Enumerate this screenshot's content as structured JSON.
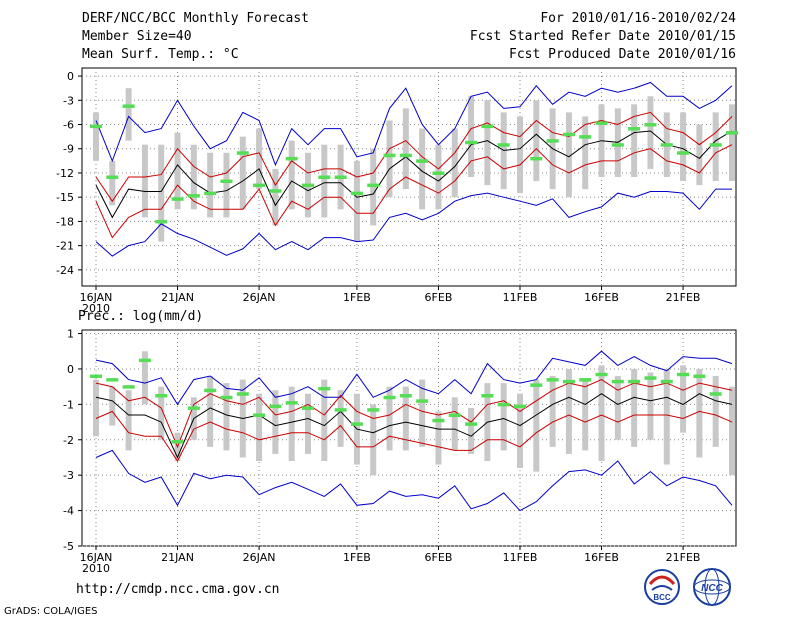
{
  "header": {
    "title": "DERF/NCC/BCC Monthly Forecast",
    "member": "Member Size=40",
    "variable1": "Mean Surf. Temp.: °C",
    "period": "For 2010/01/16-2010/02/24",
    "started": "Fcst Started Refer Date 2010/01/15",
    "produced": "Fcst Produced Date 2010/01/16"
  },
  "footer": {
    "url": "http://cmdp.ncc.cma.gov.cn",
    "grads": "GrADS: COLA/IGES",
    "logo1": "BCC",
    "logo2": "NCC"
  },
  "colors": {
    "ens_max_min": "#0000cc",
    "sd_band": "#cc0000",
    "mean": "#000000",
    "obs": "#55dd55",
    "box": "#c8c8c8"
  },
  "chart_data": [
    {
      "type": "line",
      "title": "Mean Surf. Temp.: °C",
      "x_tick_labels": [
        "16JAN",
        "21JAN",
        "26JAN",
        "1FEB",
        "6FEB",
        "11FEB",
        "16FEB",
        "21FEB"
      ],
      "x_year_label": "2010",
      "x_tick_days": [
        0,
        5,
        10,
        16,
        21,
        26,
        31,
        36
      ],
      "ylim": [
        -26,
        1
      ],
      "yticks": [
        0,
        -3,
        -6,
        -9,
        -12,
        -15,
        -18,
        -21,
        -24
      ],
      "series": [
        {
          "name": "max",
          "color": "#0000cc",
          "values": [
            -20.5,
            -22.3,
            -21,
            -20.5,
            -18.3,
            -19.5,
            -20.2,
            -21.2,
            -22.2,
            -21.4,
            -19.5,
            -21.5,
            -20.5,
            -21.5,
            -20,
            -20,
            -20.5,
            -20.3,
            -17.5,
            -17,
            -17.8,
            -17,
            -15.5,
            -14.8,
            -14.5,
            -15,
            -15.5,
            -16,
            -15.2,
            -17.5,
            -16.8,
            -16.2,
            -14.5,
            -15,
            -14.3,
            -14.3,
            -14.5,
            -16.5,
            -14,
            -14
          ]
        },
        {
          "name": "min",
          "color": "#0000cc",
          "values": [
            -5.5,
            -10.5,
            -5,
            -7,
            -6.5,
            -3,
            -6.2,
            -9,
            -8,
            -4.5,
            -5.5,
            -11,
            -6.5,
            -8.5,
            -6.5,
            -6.5,
            -10,
            -9.5,
            -4,
            -1.5,
            -6,
            -8.5,
            -6.5,
            -2.5,
            -2,
            -4,
            -3.8,
            -1.2,
            -3.5,
            -2,
            -2.5,
            -1.5,
            -2,
            -1.5,
            -0.8,
            -2.5,
            -2.5,
            -4,
            -3,
            -1.2
          ]
        },
        {
          "name": "plus_sd",
          "color": "#cc0000",
          "values": [
            -12.5,
            -15.5,
            -12.5,
            -12.5,
            -12.2,
            -9,
            -11.2,
            -12.5,
            -12,
            -10,
            -9.5,
            -13.5,
            -10.5,
            -12,
            -11.5,
            -11.5,
            -12.5,
            -12,
            -9,
            -8,
            -10,
            -11.5,
            -9.5,
            -6.5,
            -5.8,
            -7,
            -7.5,
            -5.5,
            -7,
            -7.5,
            -6,
            -5.5,
            -6,
            -5,
            -4.5,
            -6.5,
            -7,
            -8.5,
            -7,
            -5
          ]
        },
        {
          "name": "minus_sd",
          "color": "#cc0000",
          "values": [
            -15.5,
            -20,
            -17.5,
            -16.5,
            -16.5,
            -13.5,
            -15.5,
            -16.5,
            -16.5,
            -16.5,
            -14,
            -18.5,
            -15.5,
            -16.5,
            -15,
            -15,
            -17,
            -17,
            -14,
            -12.5,
            -13.5,
            -14.5,
            -13,
            -10.5,
            -10,
            -11.5,
            -11,
            -9,
            -11,
            -12,
            -11,
            -10.5,
            -10.5,
            -9.5,
            -9,
            -10.5,
            -11,
            -12,
            -9.5,
            -8.5
          ]
        },
        {
          "name": "mean",
          "color": "#000000",
          "values": [
            -13.5,
            -17.5,
            -14,
            -14.3,
            -14.3,
            -11,
            -13.2,
            -14.5,
            -14.2,
            -13,
            -11.5,
            -16,
            -13,
            -14.2,
            -13.2,
            -13.2,
            -15,
            -14.6,
            -11.5,
            -10,
            -11.8,
            -13,
            -11.2,
            -8.5,
            -8,
            -9.2,
            -9,
            -7.2,
            -9,
            -10,
            -8.5,
            -8,
            -8.2,
            -7,
            -6.8,
            -8.5,
            -9,
            -10.2,
            -8,
            -6.8
          ]
        },
        {
          "name": "observed",
          "color": "#55dd55",
          "values": [
            -6.2,
            -12.5,
            -3.7,
            null,
            -18,
            -15.2,
            -14.8,
            -14.5,
            -13,
            -9.5,
            -13.5,
            -14.2,
            -10.2,
            -13.5,
            -12.5,
            -12.5,
            -14.5,
            -13.5,
            -9.8,
            -9.8,
            -10.5,
            -12,
            null,
            -8.2,
            -6.2,
            -8.5,
            null,
            -10.2,
            -8,
            -7.2,
            -7.5,
            -5.8,
            -8.5,
            -6.5,
            -6,
            -8.5,
            -9.5,
            null,
            -8.5,
            -7
          ]
        }
      ],
      "box_top": [
        -4.5,
        -10.5,
        -1.5,
        -8.5,
        -8.5,
        -7,
        -8.5,
        -9.5,
        -9.5,
        -7.5,
        -6.5,
        -11.5,
        -8,
        -9.5,
        -8.5,
        -8.5,
        -10.5,
        -9,
        -5.5,
        -4,
        -6.5,
        -8.5,
        -6.5,
        -2.5,
        -3,
        -4.5,
        -5,
        -3,
        -4,
        -4.5,
        -5,
        -3.5,
        -4,
        -3.5,
        -2.5,
        -4.5,
        -4.5,
        -6,
        -4.5,
        -3.5
      ],
      "box_bottom": [
        -10.5,
        -16,
        -8,
        -17.5,
        -20.5,
        -16.5,
        -16.5,
        -17.5,
        -17.5,
        -16.5,
        -14,
        -18.5,
        -16.5,
        -17.5,
        -17.5,
        -16.5,
        -20.5,
        -18.5,
        -15,
        -14,
        -16.5,
        -16.5,
        -15,
        -12.5,
        -13.5,
        -14,
        -14.5,
        -13,
        -14,
        -15,
        -14,
        -12.5,
        -12.5,
        -12.5,
        -11.5,
        -12.5,
        -13,
        -13.5,
        -13,
        -13
      ]
    },
    {
      "type": "line",
      "title": "Prec.: log(mm/d)",
      "x_tick_labels": [
        "16JAN",
        "21JAN",
        "26JAN",
        "1FEB",
        "6FEB",
        "11FEB",
        "16FEB",
        "21FEB"
      ],
      "x_year_label": "2010",
      "x_tick_days": [
        0,
        5,
        10,
        16,
        21,
        26,
        31,
        36
      ],
      "ylim": [
        -5,
        1.1
      ],
      "yticks": [
        1,
        0,
        -1,
        -2,
        -3,
        -4,
        -5
      ],
      "series": [
        {
          "name": "max",
          "color": "#0000cc",
          "values": [
            0.25,
            0.15,
            -0.3,
            -0.4,
            -0.25,
            -1,
            -0.3,
            -0.2,
            -0.55,
            -0.6,
            -0.25,
            -0.8,
            -0.7,
            -0.5,
            -0.8,
            -0.8,
            -0.15,
            -0.8,
            -0.6,
            -0.3,
            -0.55,
            -0.7,
            -0.3,
            -0.7,
            0.15,
            -0.3,
            -0.4,
            -0.3,
            0.3,
            0.2,
            0.1,
            0.5,
            0.1,
            0.35,
            0.1,
            -0.05,
            0.35,
            0.3,
            0.3,
            0.15
          ]
        },
        {
          "name": "min",
          "color": "#0000cc",
          "values": [
            -2.5,
            -2.3,
            -2.95,
            -3.2,
            -3.05,
            -3.85,
            -2.95,
            -3.1,
            -3.0,
            -3.05,
            -3.55,
            -3.35,
            -3.2,
            -3.4,
            -3.6,
            -3.25,
            -3.85,
            -3.8,
            -3.45,
            -3.6,
            -3.55,
            -3.65,
            -3.3,
            -3.95,
            -3.8,
            -3.5,
            -4.0,
            -3.75,
            -3.3,
            -2.9,
            -2.85,
            -3.0,
            -2.6,
            -3.25,
            -2.9,
            -3.3,
            -3.05,
            -3.15,
            -3.3,
            -3.85
          ]
        },
        {
          "name": "plus_sd",
          "color": "#cc0000",
          "values": [
            -0.4,
            -0.5,
            -0.9,
            -0.8,
            -1.1,
            -2.2,
            -1.0,
            -0.7,
            -0.9,
            -1.0,
            -0.8,
            -1.3,
            -1.2,
            -1.0,
            -1.3,
            -0.75,
            -1.2,
            -1.4,
            -1.3,
            -1.0,
            -1.2,
            -1.3,
            -1.2,
            -1.5,
            -1.0,
            -0.9,
            -1.2,
            -0.9,
            -0.6,
            -0.4,
            -0.5,
            -0.3,
            -0.6,
            -0.4,
            -0.5,
            -0.4,
            -0.6,
            -0.4,
            -0.5,
            -0.6
          ]
        },
        {
          "name": "minus_sd",
          "color": "#cc0000",
          "values": [
            -1.4,
            -1.2,
            -1.8,
            -1.9,
            -1.9,
            -2.6,
            -1.7,
            -1.5,
            -1.7,
            -1.8,
            -2.0,
            -1.9,
            -1.8,
            -1.8,
            -2.0,
            -1.6,
            -2.2,
            -2.2,
            -1.9,
            -2.0,
            -2.1,
            -2.2,
            -2.3,
            -2.3,
            -2.0,
            -2.0,
            -2.2,
            -1.8,
            -1.5,
            -1.3,
            -1.5,
            -1.3,
            -1.5,
            -1.3,
            -1.3,
            -1.3,
            -1.4,
            -1.2,
            -1.3,
            -1.5
          ]
        },
        {
          "name": "mean",
          "color": "#000000",
          "values": [
            -0.8,
            -0.9,
            -1.3,
            -1.3,
            -1.5,
            -2.5,
            -1.4,
            -1.1,
            -1.3,
            -1.4,
            -1.3,
            -1.6,
            -1.5,
            -1.4,
            -1.6,
            -1.2,
            -1.7,
            -1.8,
            -1.6,
            -1.5,
            -1.6,
            -1.7,
            -1.7,
            -1.9,
            -1.5,
            -1.4,
            -1.6,
            -1.3,
            -1.0,
            -0.8,
            -1.0,
            -0.7,
            -1.0,
            -0.8,
            -0.9,
            -0.8,
            -1.0,
            -0.7,
            -0.9,
            -1.0
          ]
        },
        {
          "name": "observed",
          "color": "#55dd55",
          "values": [
            -0.2,
            -0.3,
            -0.5,
            0.25,
            -0.75,
            -2.05,
            -1.1,
            -0.6,
            -0.8,
            -0.7,
            -1.3,
            -1.05,
            -0.95,
            -1.1,
            -0.55,
            -1.15,
            -1.55,
            -1.15,
            -0.8,
            -0.75,
            -0.9,
            -1.45,
            -1.3,
            -1.55,
            -0.75,
            -1.0,
            -1.05,
            -0.45,
            -0.3,
            -0.35,
            -0.3,
            -0.15,
            -0.35,
            -0.35,
            -0.25,
            -0.35,
            -0.15,
            -0.2,
            -0.7,
            null
          ]
        },
        {
          "name": "observed_extra",
          "color": "#55dd55",
          "values": [
            null,
            null,
            null,
            null,
            null,
            null,
            null,
            null,
            null,
            null,
            null,
            null,
            null,
            null,
            null,
            null,
            null,
            null,
            null,
            null,
            null,
            null,
            null,
            null,
            null,
            null,
            null,
            null,
            null,
            null,
            null,
            null,
            null,
            null,
            null,
            null,
            null,
            null,
            null,
            null
          ]
        }
      ],
      "box_top": [
        -0.3,
        -0.5,
        -0.6,
        0.5,
        -0.5,
        -1.8,
        -0.8,
        -0.2,
        -0.4,
        -0.3,
        -0.7,
        -0.6,
        -0.5,
        -0.7,
        -0.3,
        -0.6,
        -0.7,
        -1.0,
        -0.5,
        -0.5,
        -0.3,
        -1.2,
        -0.8,
        -1.1,
        -0.4,
        -0.4,
        -0.7,
        -0.3,
        -0.2,
        0.0,
        -0.3,
        0.1,
        -0.2,
        0.0,
        -0.1,
        0.0,
        0.1,
        0.0,
        -0.2,
        -0.5
      ],
      "box_bottom": [
        -1.9,
        -1.6,
        -2.3,
        -1.0,
        -2.0,
        -2.6,
        -2.0,
        -2.2,
        -2.3,
        -2.5,
        -2.6,
        -2.4,
        -2.6,
        -2.4,
        -2.6,
        -2.2,
        -2.7,
        -3.0,
        -2.3,
        -2.3,
        -2.2,
        -2.7,
        -2.3,
        -2.4,
        -2.6,
        -2.3,
        -2.8,
        -2.9,
        -2.2,
        -2.4,
        -2.3,
        -2.6,
        -2.0,
        -2.2,
        -2.0,
        -2.7,
        -1.8,
        -2.5,
        -2.2,
        -3.0
      ]
    }
  ]
}
